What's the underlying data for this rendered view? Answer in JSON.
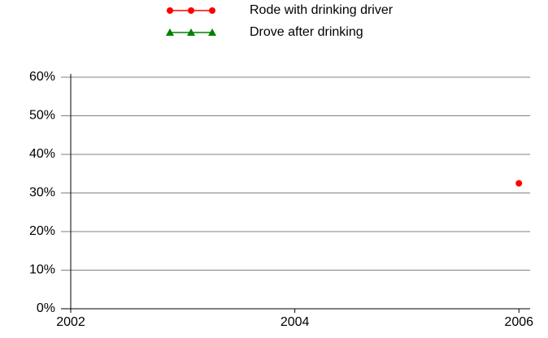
{
  "chart_data": {
    "type": "line",
    "x": [
      2006
    ],
    "series": [
      {
        "name": "Rode with drinking driver",
        "color": "#ff0000",
        "marker": "circle",
        "values": [
          32.5
        ]
      },
      {
        "name": "Drove after drinking",
        "color": "#008000",
        "marker": "triangle",
        "values": [
          null
        ]
      }
    ],
    "xlim": [
      2002,
      2006.1
    ],
    "xticks": [
      2002,
      2004,
      2006
    ],
    "ylim": [
      0,
      60
    ],
    "yticks": [
      {
        "value": 0,
        "label": "0%"
      },
      {
        "value": 10,
        "label": "10%"
      },
      {
        "value": 20,
        "label": "20%"
      },
      {
        "value": 30,
        "label": "30%"
      },
      {
        "value": 40,
        "label": "40%"
      },
      {
        "value": 50,
        "label": "50%"
      },
      {
        "value": 60,
        "label": "60%"
      }
    ],
    "grid": true,
    "legend": "top"
  }
}
